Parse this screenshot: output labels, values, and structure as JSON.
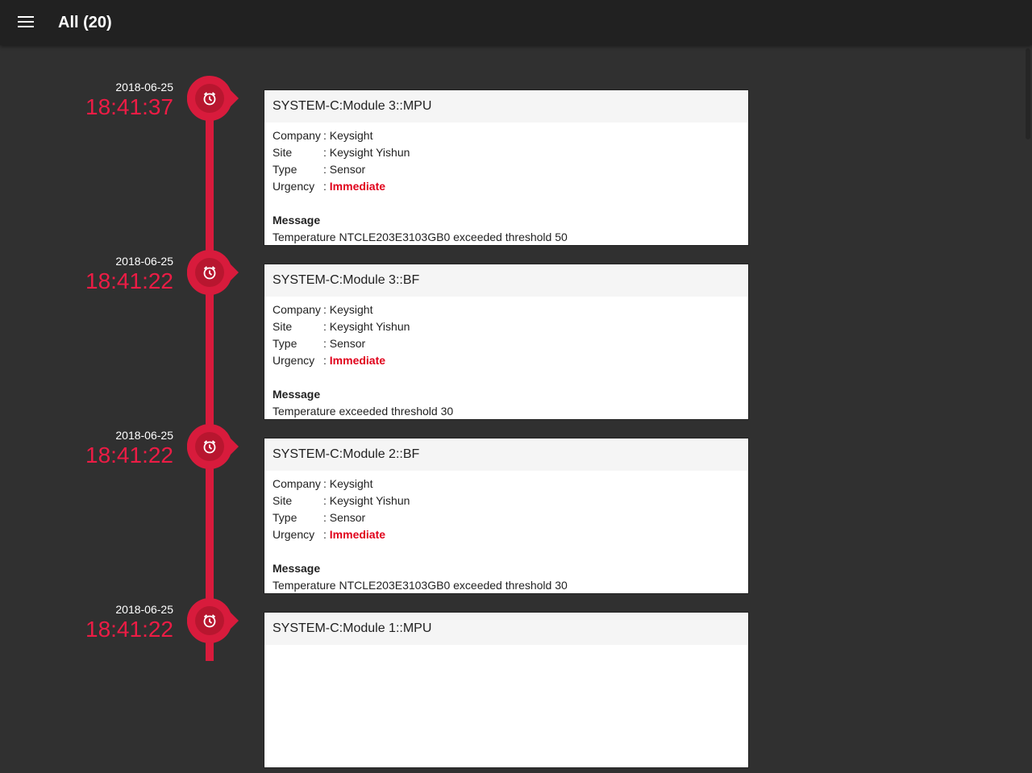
{
  "header": {
    "title": "All (20)",
    "menu_icon": "hamburger-icon"
  },
  "colors": {
    "accent": "#d81b3c",
    "urgency": "#e0001b"
  },
  "labels": {
    "company": "Company",
    "site": "Site",
    "type": "Type",
    "urgency": "Urgency",
    "message": "Message",
    "sep": ": "
  },
  "entries": [
    {
      "date": "2018-06-25",
      "time": "18:41:37",
      "title": "SYSTEM-C:Module 3::MPU",
      "company": "Keysight",
      "site": "Keysight Yishun",
      "type": "Sensor",
      "urgency": "Immediate",
      "message": "Temperature NTCLE203E3103GB0 exceeded threshold 50"
    },
    {
      "date": "2018-06-25",
      "time": "18:41:22",
      "title": "SYSTEM-C:Module 3::BF",
      "company": "Keysight",
      "site": "Keysight Yishun",
      "type": "Sensor",
      "urgency": "Immediate",
      "message": "Temperature exceeded threshold 30"
    },
    {
      "date": "2018-06-25",
      "time": "18:41:22",
      "title": "SYSTEM-C:Module 2::BF",
      "company": "Keysight",
      "site": "Keysight Yishun",
      "type": "Sensor",
      "urgency": "Immediate",
      "message": "Temperature NTCLE203E3103GB0 exceeded threshold 30"
    },
    {
      "date": "2018-06-25",
      "time": "18:41:22",
      "title": "SYSTEM-C:Module 1::MPU"
    }
  ]
}
